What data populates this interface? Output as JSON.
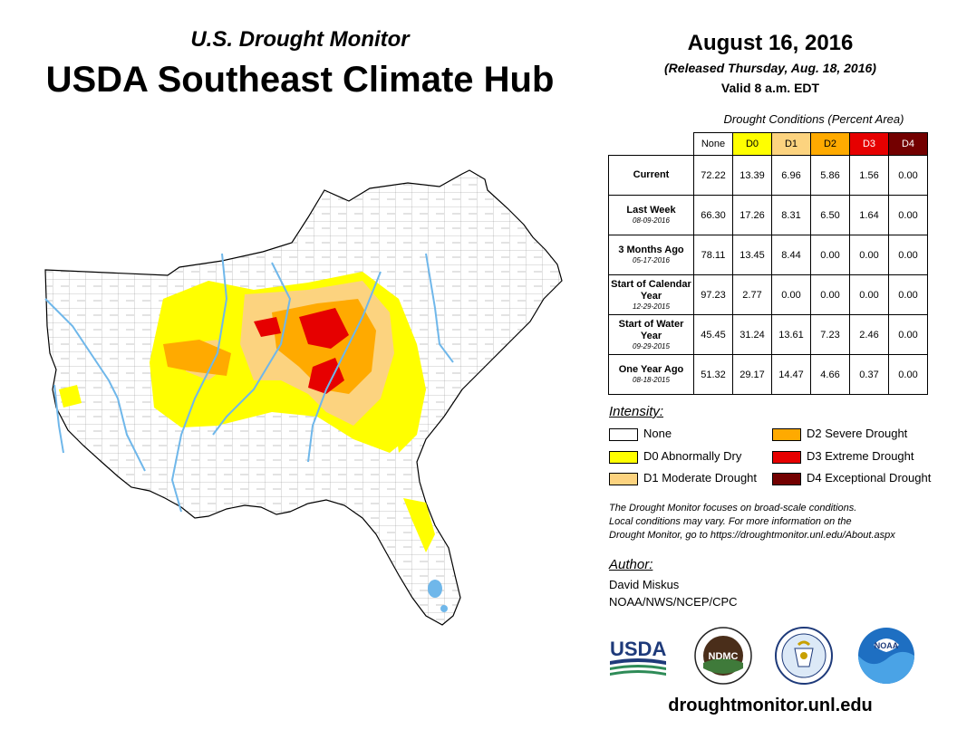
{
  "header": {
    "subtitle": "U.S. Drought Monitor",
    "title": "USDA Southeast Climate Hub",
    "date": "August 16, 2016",
    "released": "(Released Thursday, Aug. 18, 2016)",
    "valid": "Valid 8 a.m. EDT"
  },
  "table": {
    "caption": "Drought Conditions (Percent Area)",
    "columns": [
      "None",
      "D0",
      "D1",
      "D2",
      "D3",
      "D4"
    ],
    "column_colors": [
      "#ffffff",
      "#ffff00",
      "#fcd37f",
      "#ffaa00",
      "#e60000",
      "#730000"
    ],
    "rows": [
      {
        "label": "Current",
        "date": "",
        "values": [
          "72.22",
          "13.39",
          "6.96",
          "5.86",
          "1.56",
          "0.00"
        ]
      },
      {
        "label": "Last Week",
        "date": "08-09-2016",
        "values": [
          "66.30",
          "17.26",
          "8.31",
          "6.50",
          "1.64",
          "0.00"
        ]
      },
      {
        "label": "3 Months Ago",
        "date": "05-17-2016",
        "values": [
          "78.11",
          "13.45",
          "8.44",
          "0.00",
          "0.00",
          "0.00"
        ]
      },
      {
        "label": "Start of Calendar Year",
        "date": "12-29-2015",
        "values": [
          "97.23",
          "2.77",
          "0.00",
          "0.00",
          "0.00",
          "0.00"
        ]
      },
      {
        "label": "Start of Water Year",
        "date": "09-29-2015",
        "values": [
          "45.45",
          "31.24",
          "13.61",
          "7.23",
          "2.46",
          "0.00"
        ]
      },
      {
        "label": "One Year Ago",
        "date": "08-18-2015",
        "values": [
          "51.32",
          "29.17",
          "14.47",
          "4.66",
          "0.37",
          "0.00"
        ]
      }
    ]
  },
  "legend": {
    "title": "Intensity:",
    "items": [
      {
        "label": "None",
        "color": "#ffffff"
      },
      {
        "label": "D0 Abnormally Dry",
        "color": "#ffff00"
      },
      {
        "label": "D1 Moderate Drought",
        "color": "#fcd37f"
      },
      {
        "label": "D2 Severe Drought",
        "color": "#ffaa00"
      },
      {
        "label": "D3 Extreme Drought",
        "color": "#e60000"
      },
      {
        "label": "D4 Exceptional Drought",
        "color": "#730000"
      }
    ]
  },
  "footnote": [
    "The Drought Monitor focuses on broad-scale conditions.",
    "Local conditions may vary. For more information on the",
    "Drought Monitor, go to https://droughtmonitor.unl.edu/About.aspx"
  ],
  "author": {
    "heading": "Author:",
    "name": "David Miskus",
    "org": "NOAA/NWS/NCEP/CPC"
  },
  "logos": {
    "usda": "USDA",
    "ndmc": "NDMC",
    "noaa": "NOAA"
  },
  "website": "droughtmonitor.unl.edu",
  "map": {
    "water_color": "#6fb7ea",
    "county_line_color": "#333333"
  }
}
